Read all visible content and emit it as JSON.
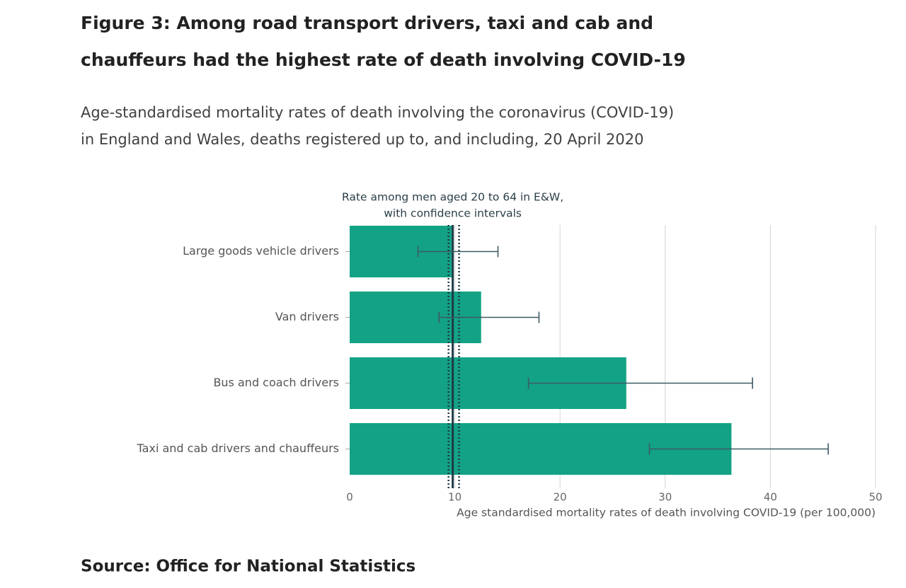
{
  "title": [
    "Figure 3: Among road transport drivers, taxi and cab and",
    "chauffeurs had the highest rate of death involving COVID-19"
  ],
  "subtitle": [
    "Age-standardised mortality rates of death involving the coronavirus (COVID-19)",
    "in England and Wales, deaths registered up to, and including, 20 April 2020"
  ],
  "chart_data": {
    "type": "hbar",
    "categories": [
      "Large goods vehicle drivers",
      "Van drivers",
      "Bus and coach drivers",
      "Taxi and cab drivers and chauffeurs"
    ],
    "values": [
      9.7,
      12.5,
      26.3,
      36.3
    ],
    "ci_low": [
      6.5,
      8.5,
      17.0,
      28.5
    ],
    "ci_high": [
      14.1,
      18.0,
      38.3,
      45.5
    ],
    "color": "#13a285",
    "error_color": "#3d5a66",
    "xlim": [
      0,
      50
    ],
    "xticks": [
      0,
      10,
      20,
      30,
      40,
      50
    ],
    "grid": true,
    "xlabel": "Age standardised mortality rates of death involving COVID-19 (per 100,000)",
    "reference": {
      "label": [
        "Rate among men aged 20 to 64 in E&W,",
        "with confidence intervals"
      ],
      "value": 9.8,
      "lower": 9.4,
      "upper": 10.4,
      "color": "#1e3a44"
    }
  },
  "source": "Source: Office for National Statistics"
}
